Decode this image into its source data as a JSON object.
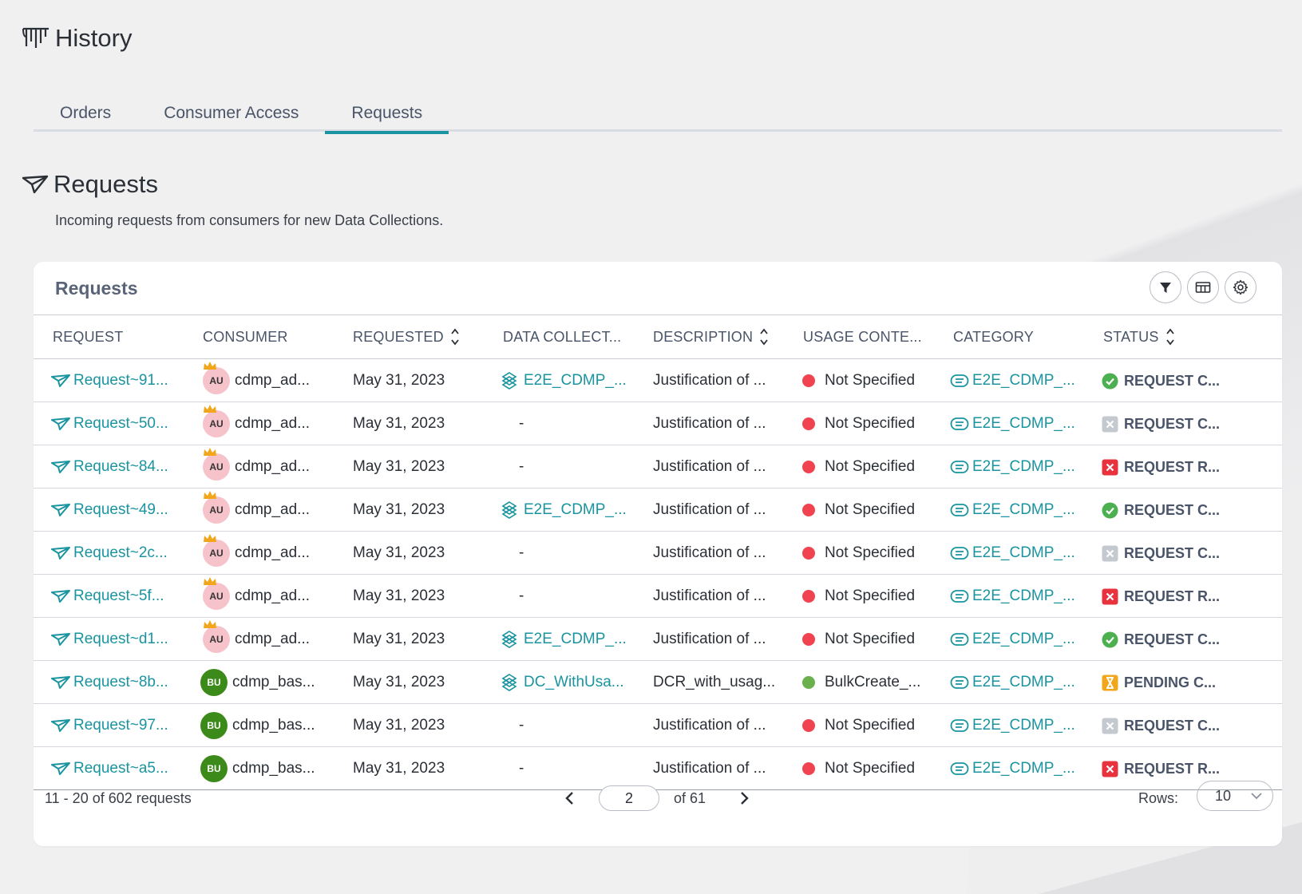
{
  "page": {
    "title": "History"
  },
  "tabs": [
    {
      "label": "Orders",
      "active": false
    },
    {
      "label": "Consumer Access",
      "active": false
    },
    {
      "label": "Requests",
      "active": true
    }
  ],
  "section": {
    "title": "Requests",
    "description": "Incoming requests from consumers for new Data Collections."
  },
  "card": {
    "title": "Requests"
  },
  "toolbar": {
    "filter": "filter-icon",
    "columns": "columns-icon",
    "settings": "gear-icon"
  },
  "columns": [
    "REQUEST",
    "CONSUMER",
    "REQUESTED",
    "DATA COLLECT...",
    "DESCRIPTION",
    "USAGE CONTE...",
    "CATEGORY",
    "STATUS"
  ],
  "rows": [
    {
      "request": "Request~91...",
      "avatar": "AU",
      "avatar_type": "au",
      "consumer": "cdmp_ad...",
      "requested": "May 31, 2023",
      "data_collection": "E2E_CDMP_...",
      "description": "Justification of ...",
      "usage_color": "#f0424f",
      "usage": "Not Specified",
      "category": "E2E_CDMP_...",
      "status_type": "check",
      "status": "REQUEST C..."
    },
    {
      "request": "Request~50...",
      "avatar": "AU",
      "avatar_type": "au",
      "consumer": "cdmp_ad...",
      "requested": "May 31, 2023",
      "data_collection": "-",
      "description": "Justification of ...",
      "usage_color": "#f0424f",
      "usage": "Not Specified",
      "category": "E2E_CDMP_...",
      "status_type": "cancel",
      "status": "REQUEST C..."
    },
    {
      "request": "Request~84...",
      "avatar": "AU",
      "avatar_type": "au",
      "consumer": "cdmp_ad...",
      "requested": "May 31, 2023",
      "data_collection": "-",
      "description": "Justification of ...",
      "usage_color": "#f0424f",
      "usage": "Not Specified",
      "category": "E2E_CDMP_...",
      "status_type": "reject",
      "status": "REQUEST R..."
    },
    {
      "request": "Request~49...",
      "avatar": "AU",
      "avatar_type": "au",
      "consumer": "cdmp_ad...",
      "requested": "May 31, 2023",
      "data_collection": "E2E_CDMP_...",
      "description": "Justification of ...",
      "usage_color": "#f0424f",
      "usage": "Not Specified",
      "category": "E2E_CDMP_...",
      "status_type": "check",
      "status": "REQUEST C..."
    },
    {
      "request": "Request~2c...",
      "avatar": "AU",
      "avatar_type": "au",
      "consumer": "cdmp_ad...",
      "requested": "May 31, 2023",
      "data_collection": "-",
      "description": "Justification of ...",
      "usage_color": "#f0424f",
      "usage": "Not Specified",
      "category": "E2E_CDMP_...",
      "status_type": "cancel",
      "status": "REQUEST C..."
    },
    {
      "request": "Request~5f...",
      "avatar": "AU",
      "avatar_type": "au",
      "consumer": "cdmp_ad...",
      "requested": "May 31, 2023",
      "data_collection": "-",
      "description": "Justification of ...",
      "usage_color": "#f0424f",
      "usage": "Not Specified",
      "category": "E2E_CDMP_...",
      "status_type": "reject",
      "status": "REQUEST R..."
    },
    {
      "request": "Request~d1...",
      "avatar": "AU",
      "avatar_type": "au",
      "consumer": "cdmp_ad...",
      "requested": "May 31, 2023",
      "data_collection": "E2E_CDMP_...",
      "description": "Justification of ...",
      "usage_color": "#f0424f",
      "usage": "Not Specified",
      "category": "E2E_CDMP_...",
      "status_type": "check",
      "status": "REQUEST C..."
    },
    {
      "request": "Request~8b...",
      "avatar": "BU",
      "avatar_type": "bu",
      "consumer": "cdmp_bas...",
      "requested": "May 31, 2023",
      "data_collection": "DC_WithUsa...",
      "description": "DCR_with_usag...",
      "usage_color": "#6ab04c",
      "usage": "BulkCreate_...",
      "category": "E2E_CDMP_...",
      "status_type": "pending",
      "status": "PENDING C..."
    },
    {
      "request": "Request~97...",
      "avatar": "BU",
      "avatar_type": "bu",
      "consumer": "cdmp_bas...",
      "requested": "May 31, 2023",
      "data_collection": "-",
      "description": "Justification of ...",
      "usage_color": "#f0424f",
      "usage": "Not Specified",
      "category": "E2E_CDMP_...",
      "status_type": "cancel",
      "status": "REQUEST C..."
    },
    {
      "request": "Request~a5...",
      "avatar": "BU",
      "avatar_type": "bu",
      "consumer": "cdmp_bas...",
      "requested": "May 31, 2023",
      "data_collection": "-",
      "description": "Justification of ...",
      "usage_color": "#f0424f",
      "usage": "Not Specified",
      "category": "E2E_CDMP_...",
      "status_type": "reject",
      "status": "REQUEST R..."
    }
  ],
  "footer": {
    "count": "11 - 20 of 602 requests",
    "page": "2",
    "of_pages": "of 61",
    "rows_label": "Rows:",
    "rows_value": "10"
  }
}
